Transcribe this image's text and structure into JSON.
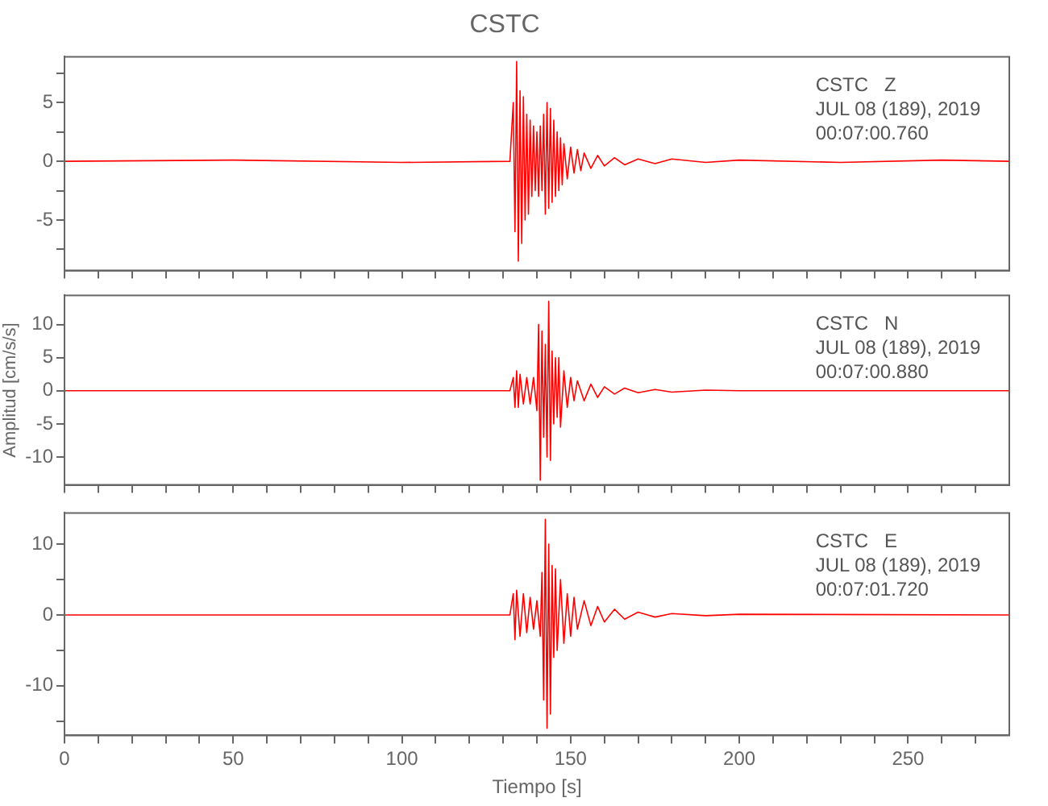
{
  "chart_data": [
    {
      "type": "line",
      "title": "CSTC",
      "annotations": [
        "CSTC   Z",
        "JUL 08 (189), 2019",
        "00:07:00.760"
      ],
      "tick_labels": "y",
      "grid": false,
      "xlim": [
        0,
        280
      ],
      "xticks": [
        0,
        {
          "value": 10,
          "label": null
        },
        {
          "value": 20,
          "label": null
        },
        {
          "value": 30,
          "label": null
        },
        {
          "value": 40,
          "label": null
        },
        50,
        {
          "value": 60,
          "label": null
        },
        {
          "value": 70,
          "label": null
        },
        {
          "value": 80,
          "label": null
        },
        {
          "value": 90,
          "label": null
        },
        100,
        {
          "value": 110,
          "label": null
        },
        {
          "value": 120,
          "label": null
        },
        {
          "value": 130,
          "label": null
        },
        {
          "value": 140,
          "label": null
        },
        150,
        {
          "value": 160,
          "label": null
        },
        {
          "value": 170,
          "label": null
        },
        {
          "value": 180,
          "label": null
        },
        {
          "value": 190,
          "label": null
        },
        200,
        {
          "value": 210,
          "label": null
        },
        {
          "value": 220,
          "label": null
        },
        {
          "value": 230,
          "label": null
        },
        {
          "value": 240,
          "label": null
        },
        250,
        {
          "value": 260,
          "label": null
        },
        {
          "value": 270,
          "label": null
        }
      ],
      "ylim": [
        -9.3,
        8.9
      ],
      "yticks": [
        {
          "value": -7.5,
          "label": null
        },
        -5,
        {
          "value": -2.5,
          "label": null
        },
        0,
        {
          "value": 2.5,
          "label": null
        },
        5,
        {
          "value": 7.5,
          "label": null
        }
      ],
      "series": [
        {
          "color": "#ff0000",
          "x": [
            0,
            50,
            100,
            132,
            133,
            133.5,
            134,
            134.5,
            135,
            135.5,
            136,
            136.5,
            137,
            137.5,
            138,
            138.5,
            139,
            139.5,
            140,
            140.5,
            141,
            141.5,
            142,
            142.5,
            143,
            143.5,
            144,
            144.5,
            145,
            145.5,
            146,
            146.5,
            147,
            147.5,
            148,
            149,
            150,
            151,
            152,
            153,
            154,
            156,
            158,
            160,
            163,
            166,
            170,
            175,
            180,
            190,
            200,
            230,
            260,
            280
          ],
          "values": [
            0,
            0.1,
            -0.1,
            0,
            5,
            -6,
            8.5,
            -8.5,
            6,
            -7,
            5.5,
            -5,
            4,
            -4.5,
            3.5,
            -3,
            3,
            -2.5,
            2.5,
            -3,
            3,
            -2.5,
            4,
            -4.5,
            5,
            -4,
            4.5,
            -3.5,
            3.5,
            -3,
            2.5,
            -2.5,
            2,
            -2,
            1.5,
            -1.5,
            1.2,
            -1,
            1,
            -0.8,
            0.7,
            -0.6,
            0.5,
            -0.4,
            0.3,
            -0.3,
            0.2,
            -0.2,
            0.2,
            -0.1,
            0.1,
            -0.1,
            0.1,
            0
          ]
        }
      ]
    },
    {
      "type": "line",
      "ylabel": "Amplitud [cm/s/s]",
      "annotations": [
        "CSTC   N",
        "JUL 08 (189), 2019",
        "00:07:00.880"
      ],
      "tick_labels": "y",
      "grid": false,
      "xlim": [
        0,
        280
      ],
      "xticks": [
        0,
        {
          "value": 10,
          "label": null
        },
        {
          "value": 20,
          "label": null
        },
        {
          "value": 30,
          "label": null
        },
        {
          "value": 40,
          "label": null
        },
        50,
        {
          "value": 60,
          "label": null
        },
        {
          "value": 70,
          "label": null
        },
        {
          "value": 80,
          "label": null
        },
        {
          "value": 90,
          "label": null
        },
        100,
        {
          "value": 110,
          "label": null
        },
        {
          "value": 120,
          "label": null
        },
        {
          "value": 130,
          "label": null
        },
        {
          "value": 140,
          "label": null
        },
        150,
        {
          "value": 160,
          "label": null
        },
        {
          "value": 170,
          "label": null
        },
        {
          "value": 180,
          "label": null
        },
        {
          "value": 190,
          "label": null
        },
        200,
        {
          "value": 210,
          "label": null
        },
        {
          "value": 220,
          "label": null
        },
        {
          "value": 230,
          "label": null
        },
        {
          "value": 240,
          "label": null
        },
        250,
        {
          "value": 260,
          "label": null
        },
        {
          "value": 270,
          "label": null
        }
      ],
      "ylim": [
        -14.2,
        14.4
      ],
      "yticks": [
        -10,
        -5,
        0,
        5,
        10
      ],
      "series": [
        {
          "color": "#ff0000",
          "x": [
            0,
            50,
            100,
            132,
            133,
            133.5,
            134,
            134.5,
            135,
            136,
            137,
            138,
            139,
            140,
            140.5,
            141,
            141.5,
            142,
            142.5,
            143,
            143.5,
            144,
            144.5,
            145,
            145.5,
            146,
            146.5,
            147,
            148,
            149,
            150,
            151,
            152,
            154,
            156,
            158,
            160,
            163,
            166,
            170,
            175,
            180,
            190,
            200,
            280
          ],
          "values": [
            0,
            0,
            0,
            0,
            2,
            -2.5,
            3,
            -2.5,
            2.5,
            -2,
            2,
            -2,
            2,
            -3,
            10,
            -13.5,
            9,
            -7,
            7,
            -10,
            13.5,
            -10.5,
            6,
            -5,
            5,
            -4,
            5,
            -5.5,
            3,
            -2.5,
            2,
            -1.5,
            1.5,
            -1.5,
            1,
            -1,
            0.6,
            -0.5,
            0.4,
            -0.3,
            0.2,
            -0.2,
            0.1,
            0,
            0
          ]
        }
      ]
    },
    {
      "type": "line",
      "xlabel": "Tiempo [s]",
      "annotations": [
        "CSTC   E",
        "JUL 08 (189), 2019",
        "00:07:01.720"
      ],
      "grid": false,
      "xlim": [
        0,
        280
      ],
      "xticks": [
        0,
        {
          "value": 10,
          "label": null
        },
        {
          "value": 20,
          "label": null
        },
        {
          "value": 30,
          "label": null
        },
        {
          "value": 40,
          "label": null
        },
        50,
        {
          "value": 60,
          "label": null
        },
        {
          "value": 70,
          "label": null
        },
        {
          "value": 80,
          "label": null
        },
        {
          "value": 90,
          "label": null
        },
        100,
        {
          "value": 110,
          "label": null
        },
        {
          "value": 120,
          "label": null
        },
        {
          "value": 130,
          "label": null
        },
        {
          "value": 140,
          "label": null
        },
        150,
        {
          "value": 160,
          "label": null
        },
        {
          "value": 170,
          "label": null
        },
        {
          "value": 180,
          "label": null
        },
        {
          "value": 190,
          "label": null
        },
        200,
        {
          "value": 210,
          "label": null
        },
        {
          "value": 220,
          "label": null
        },
        {
          "value": 230,
          "label": null
        },
        {
          "value": 240,
          "label": null
        },
        250,
        {
          "value": 260,
          "label": null
        },
        {
          "value": 270,
          "label": null
        }
      ],
      "ylim": [
        -17,
        14.4
      ],
      "yticks": [
        {
          "value": -15,
          "label": null
        },
        -10,
        {
          "value": -5,
          "label": null
        },
        0,
        {
          "value": 5,
          "label": null
        },
        10
      ],
      "series": [
        {
          "color": "#ff0000",
          "x": [
            0,
            50,
            100,
            132,
            133,
            133.5,
            134,
            135,
            136,
            137,
            138,
            139,
            140,
            141,
            141.5,
            142,
            142.5,
            143,
            143.5,
            144,
            144.5,
            145,
            145.5,
            146,
            147,
            148,
            149,
            150,
            151,
            152,
            154,
            156,
            158,
            160,
            163,
            166,
            170,
            175,
            180,
            190,
            200,
            280
          ],
          "values": [
            0,
            0,
            0,
            0,
            3,
            -3.5,
            3.5,
            -3,
            3,
            -2.5,
            2.5,
            -2,
            2,
            -3,
            6,
            -12,
            13.5,
            -16,
            10,
            -14,
            7,
            -6,
            6.5,
            -5,
            5,
            -4,
            3,
            -3,
            2.5,
            -2,
            2,
            -1.5,
            1.2,
            -1,
            0.8,
            -0.6,
            0.4,
            -0.3,
            0.2,
            -0.1,
            0.1,
            0
          ]
        }
      ]
    }
  ]
}
